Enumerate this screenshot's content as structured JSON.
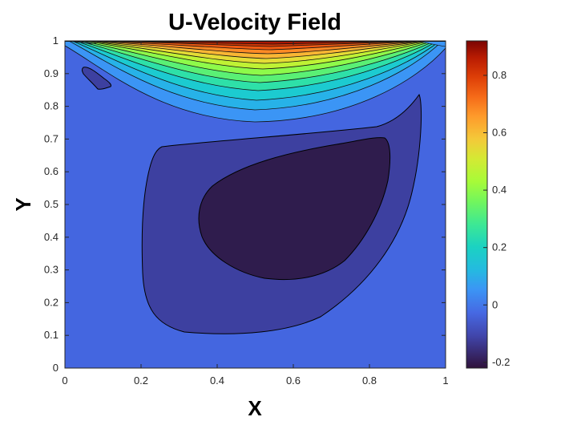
{
  "chart_data": {
    "type": "contour",
    "title": "U-Velocity Field",
    "xlabel": "X",
    "ylabel": "Y",
    "xlim": [
      0,
      1
    ],
    "ylim": [
      0,
      1
    ],
    "x_ticks": [
      "0",
      "0.2",
      "0.4",
      "0.6",
      "0.8",
      "1"
    ],
    "y_ticks": [
      "0",
      "0.1",
      "0.2",
      "0.3",
      "0.4",
      "0.5",
      "0.6",
      "0.7",
      "0.8",
      "0.9",
      "1"
    ],
    "colorbar": {
      "colormap": "turbo",
      "range": [
        -0.22,
        0.92
      ],
      "ticks": [
        "-0.2",
        "0",
        "0.2",
        "0.4",
        "0.6",
        "0.8"
      ]
    },
    "contour_fill_colors": {
      "level_min": "#2f1c4d",
      "level_low": "#3d40a0",
      "level_background": "#4466e0",
      "level_zero": "#3b95f5"
    },
    "regions": [
      {
        "level": "level_low",
        "description_points": [
          [
            0.21,
            0.68
          ],
          [
            0.52,
            0.72
          ],
          [
            0.93,
            0.84
          ],
          [
            0.92,
            0.55
          ],
          [
            0.8,
            0.3
          ],
          [
            0.6,
            0.13
          ],
          [
            0.5,
            0.11
          ],
          [
            0.3,
            0.13
          ],
          [
            0.21,
            0.25
          ],
          [
            0.19,
            0.45
          ]
        ]
      },
      {
        "level": "level_min",
        "description_points": [
          [
            0.4,
            0.53
          ],
          [
            0.58,
            0.66
          ],
          [
            0.85,
            0.7
          ],
          [
            0.84,
            0.55
          ],
          [
            0.75,
            0.38
          ],
          [
            0.62,
            0.28
          ],
          [
            0.52,
            0.27
          ],
          [
            0.4,
            0.32
          ],
          [
            0.36,
            0.42
          ]
        ]
      },
      {
        "level": "level_low",
        "description_points": [
          [
            0.05,
            0.915
          ],
          [
            0.12,
            0.87
          ],
          [
            0.1,
            0.84
          ],
          [
            0.06,
            0.88
          ]
        ]
      }
    ]
  }
}
